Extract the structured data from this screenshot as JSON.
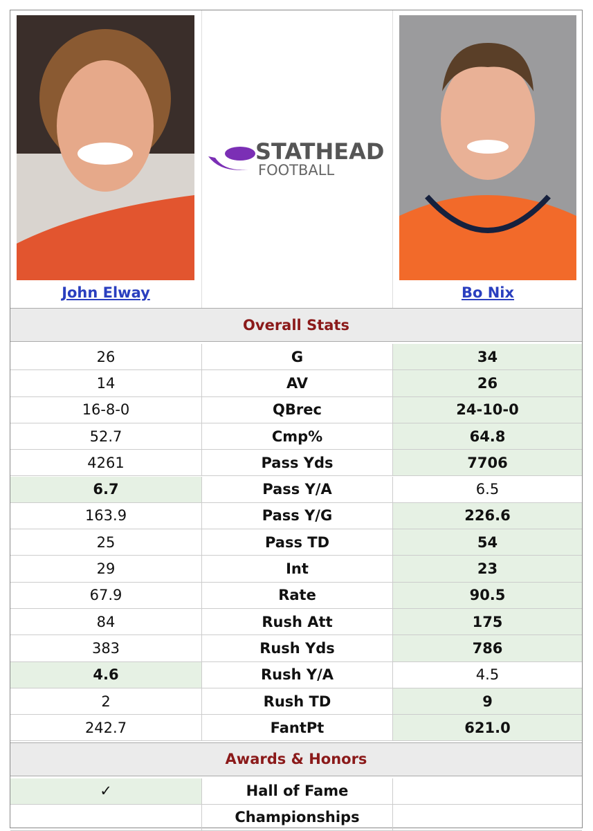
{
  "players": [
    {
      "name": "John Elway"
    },
    {
      "name": "Bo Nix"
    }
  ],
  "logo": {
    "line1": "STATHEAD",
    "line2": "FOOTBALL"
  },
  "sections": [
    {
      "title": "Overall Stats",
      "rows": [
        {
          "stat": "G",
          "left": "26",
          "right": "34",
          "highlight": "right"
        },
        {
          "stat": "AV",
          "left": "14",
          "right": "26",
          "highlight": "right"
        },
        {
          "stat": "QBrec",
          "left": "16-8-0",
          "right": "24-10-0",
          "highlight": "right"
        },
        {
          "stat": "Cmp%",
          "left": "52.7",
          "right": "64.8",
          "highlight": "right"
        },
        {
          "stat": "Pass Yds",
          "left": "4261",
          "right": "7706",
          "highlight": "right"
        },
        {
          "stat": "Pass Y/A",
          "left": "6.7",
          "right": "6.5",
          "highlight": "left"
        },
        {
          "stat": "Pass Y/G",
          "left": "163.9",
          "right": "226.6",
          "highlight": "right"
        },
        {
          "stat": "Pass TD",
          "left": "25",
          "right": "54",
          "highlight": "right"
        },
        {
          "stat": "Int",
          "left": "29",
          "right": "23",
          "highlight": "right"
        },
        {
          "stat": "Rate",
          "left": "67.9",
          "right": "90.5",
          "highlight": "right"
        },
        {
          "stat": "Rush Att",
          "left": "84",
          "right": "175",
          "highlight": "right"
        },
        {
          "stat": "Rush Yds",
          "left": "383",
          "right": "786",
          "highlight": "right"
        },
        {
          "stat": "Rush Y/A",
          "left": "4.6",
          "right": "4.5",
          "highlight": "left"
        },
        {
          "stat": "Rush TD",
          "left": "2",
          "right": "9",
          "highlight": "right"
        },
        {
          "stat": "FantPt",
          "left": "242.7",
          "right": "621.0",
          "highlight": "right"
        }
      ]
    },
    {
      "title": "Awards & Honors",
      "rows": [
        {
          "stat": "Hall of Fame",
          "left": "✓",
          "right": null,
          "highlight": "left"
        },
        {
          "stat": "Championships",
          "left": null,
          "right": null,
          "highlight": null
        }
      ]
    }
  ]
}
